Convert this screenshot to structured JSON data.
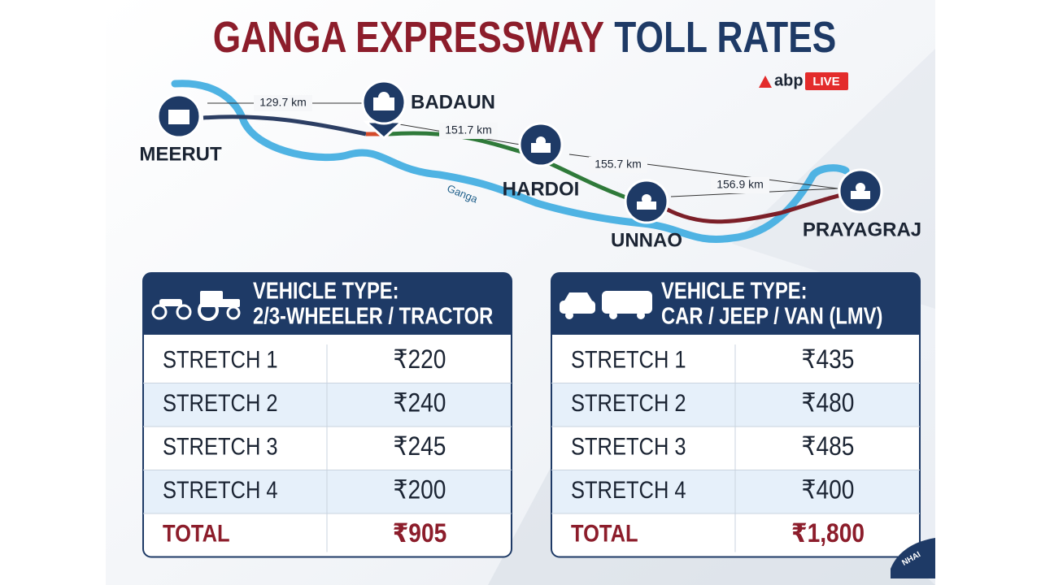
{
  "header": {
    "title_part1": "GANGA EXPRESSWAY",
    "title_part2": "TOLL RATES"
  },
  "logo": {
    "brand": "abp",
    "badge": "LIVE"
  },
  "map": {
    "river_label": "Ganga",
    "cities": [
      "MEERUT",
      "BADAUN",
      "HARDOI",
      "UNNAO",
      "PRAYAGRAJ"
    ],
    "distances": [
      "129.7 km",
      "151.7 km",
      "155.7 km",
      "156.9 km"
    ]
  },
  "tables": [
    {
      "heading_line1": "VEHICLE TYPE:",
      "heading_line2": "2/3-WHEELER / TRACTOR",
      "rows": [
        [
          "STRETCH 1",
          "₹220"
        ],
        [
          "STRETCH 2",
          "₹240"
        ],
        [
          "STRETCH 3",
          "₹245"
        ],
        [
          "STRETCH 4",
          "₹200"
        ]
      ],
      "total": [
        "TOTAL",
        "₹905"
      ]
    },
    {
      "heading_line1": "VEHICLE TYPE:",
      "heading_line2": "CAR / JEEP / VAN (LMV)",
      "rows": [
        [
          "STRETCH 1",
          "₹435"
        ],
        [
          "STRETCH 2",
          "₹480"
        ],
        [
          "STRETCH 3",
          "₹485"
        ],
        [
          "STRETCH 4",
          "₹400"
        ]
      ],
      "total": [
        "TOTAL",
        "₹1,800"
      ]
    }
  ],
  "footer_logo": "NHAI"
}
